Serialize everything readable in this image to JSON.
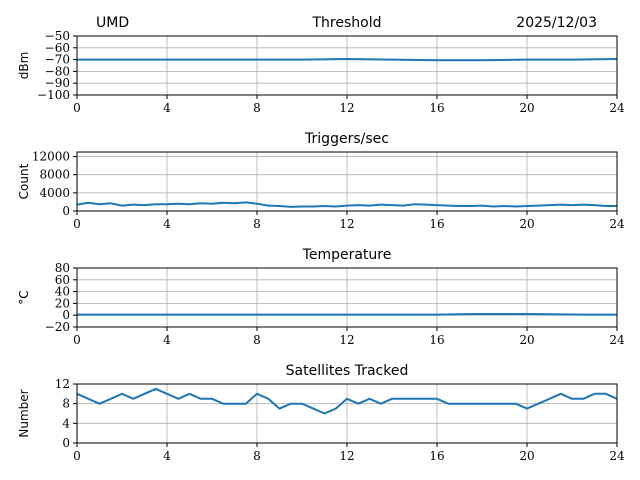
{
  "header": {
    "site": "UMD",
    "date": "2025/12/03"
  },
  "colors": {
    "series": "#1f77b4",
    "grid": "#b0b0b0",
    "axis": "#000000"
  },
  "chart_data": [
    {
      "type": "line",
      "title": "Threshold",
      "ylabel": "dBm",
      "xlim": [
        0,
        24
      ],
      "ylim": [
        -100,
        -50
      ],
      "x_ticks": [
        0,
        4,
        8,
        12,
        16,
        20,
        24
      ],
      "y_ticks": [
        -100,
        -90,
        -80,
        -70,
        -60,
        -50
      ],
      "y_tick_labels": [
        "−100",
        "−90",
        "−80",
        "−70",
        "−60",
        "−50"
      ],
      "grid": true,
      "x": [
        0,
        2,
        4,
        6,
        8,
        10,
        12,
        14,
        16,
        18,
        20,
        22,
        24
      ],
      "values": [
        -70,
        -70,
        -70,
        -70,
        -70,
        -70,
        -69.5,
        -70,
        -70.5,
        -70.5,
        -70,
        -70,
        -69.5
      ]
    },
    {
      "type": "line",
      "title": "Triggers/sec",
      "ylabel": "Count",
      "xlim": [
        0,
        24
      ],
      "ylim": [
        0,
        13000
      ],
      "x_ticks": [
        0,
        4,
        8,
        12,
        16,
        20,
        24
      ],
      "y_ticks": [
        0,
        4000,
        8000,
        12000
      ],
      "y_tick_labels": [
        "0",
        "4000",
        "8000",
        "12000"
      ],
      "grid": true,
      "x": [
        0,
        0.5,
        1,
        1.5,
        2,
        2.5,
        3,
        3.5,
        4,
        4.5,
        5,
        5.5,
        6,
        6.5,
        7,
        7.5,
        8,
        8.5,
        9,
        9.5,
        10,
        10.5,
        11,
        11.5,
        12,
        12.5,
        13,
        13.5,
        14,
        14.5,
        15,
        15.5,
        16,
        16.5,
        17,
        17.5,
        18,
        18.5,
        19,
        19.5,
        20,
        20.5,
        21,
        21.5,
        22,
        22.5,
        23,
        23.5,
        24
      ],
      "values": [
        1400,
        1800,
        1500,
        1700,
        1200,
        1400,
        1300,
        1500,
        1500,
        1600,
        1500,
        1700,
        1600,
        1800,
        1700,
        1900,
        1600,
        1200,
        1100,
        900,
        1000,
        1000,
        1100,
        1000,
        1200,
        1300,
        1200,
        1400,
        1300,
        1200,
        1500,
        1400,
        1300,
        1200,
        1100,
        1100,
        1200,
        1000,
        1100,
        1000,
        1100,
        1200,
        1300,
        1400,
        1300,
        1400,
        1300,
        1100,
        1100
      ]
    },
    {
      "type": "line",
      "title": "Temperature",
      "ylabel": "°C",
      "xlim": [
        0,
        24
      ],
      "ylim": [
        -20,
        80
      ],
      "x_ticks": [
        0,
        4,
        8,
        12,
        16,
        20,
        24
      ],
      "y_ticks": [
        -20,
        0,
        20,
        40,
        60,
        80
      ],
      "y_tick_labels": [
        "−20",
        "0",
        "20",
        "40",
        "60",
        "80"
      ],
      "grid": true,
      "x": [
        0,
        4,
        8,
        12,
        16,
        17.6,
        20,
        22.6,
        24
      ],
      "values": [
        1,
        1,
        1,
        1,
        1,
        2,
        2,
        1,
        1
      ]
    },
    {
      "type": "line",
      "title": "Satellites Tracked",
      "ylabel": "Number",
      "xlim": [
        0,
        24
      ],
      "ylim": [
        0,
        12
      ],
      "x_ticks": [
        0,
        4,
        8,
        12,
        16,
        20,
        24
      ],
      "y_ticks": [
        0,
        4,
        8,
        12
      ],
      "y_tick_labels": [
        "0",
        "4",
        "8",
        "12"
      ],
      "grid": true,
      "x": [
        0,
        0.5,
        1,
        1.5,
        2,
        2.5,
        3,
        3.5,
        4,
        4.5,
        5,
        5.5,
        6,
        6.5,
        7,
        7.5,
        8,
        8.5,
        9,
        9.5,
        10,
        10.5,
        11,
        11.5,
        12,
        12.5,
        13,
        13.5,
        14,
        14.5,
        15,
        15.5,
        16,
        16.5,
        17,
        17.5,
        18,
        18.5,
        19,
        19.5,
        20,
        20.5,
        21,
        21.5,
        22,
        22.5,
        23,
        23.5,
        24
      ],
      "values": [
        10,
        9,
        8,
        9,
        10,
        9,
        10,
        11,
        10,
        9,
        10,
        9,
        9,
        8,
        8,
        8,
        10,
        9,
        7,
        8,
        8,
        7,
        6,
        7,
        9,
        8,
        9,
        8,
        9,
        9,
        9,
        9,
        9,
        8,
        8,
        8,
        8,
        8,
        8,
        8,
        7,
        8,
        9,
        10,
        9,
        9,
        10,
        10,
        9
      ]
    }
  ]
}
